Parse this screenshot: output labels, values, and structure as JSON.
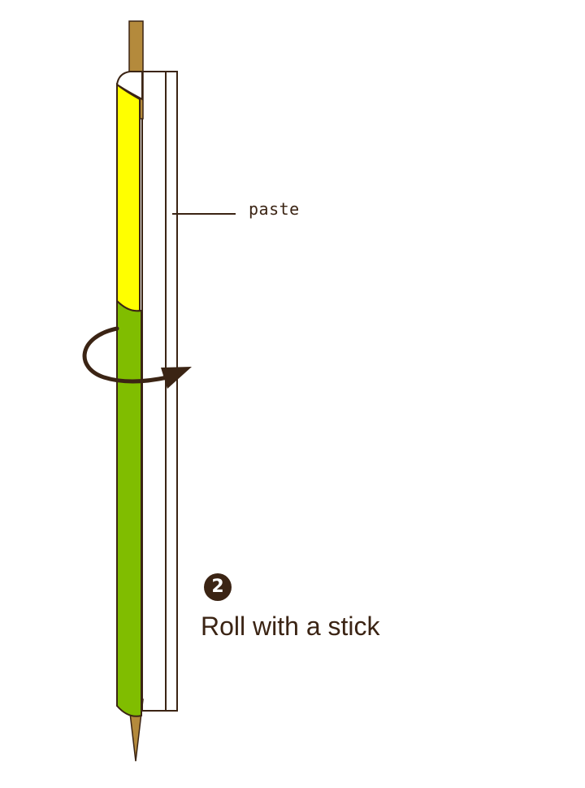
{
  "labels": {
    "paste": "paste"
  },
  "step": {
    "number": "2",
    "caption": "Roll with a stick"
  },
  "colors": {
    "stick": "#b48a3c",
    "paper_yellow": "#ffff00",
    "paper_green": "#80bd00",
    "outline": "#3b2414",
    "arrow": "#3b2414"
  },
  "icons": {
    "rotation": "curved-rotation-arrow-icon"
  }
}
